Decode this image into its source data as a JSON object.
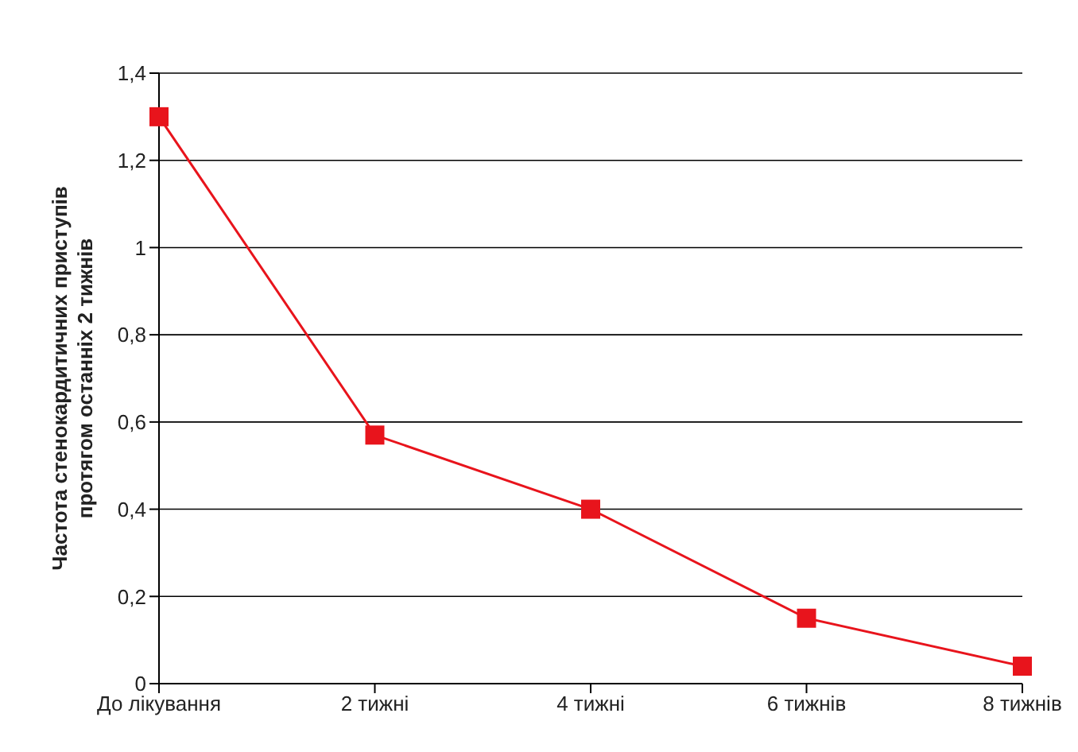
{
  "chart_data": {
    "type": "line",
    "ylabel": "Частота стенокардитичних приступів\nпротягом останніх 2 тижнів",
    "categories": [
      "До лікування",
      "2 тижні",
      "4 тижні",
      "6 тижнів",
      "8 тижнів"
    ],
    "series": [
      {
        "color": "#e8141c",
        "values": [
          1.3,
          0.57,
          0.4,
          0.15,
          0.04
        ]
      }
    ],
    "ylim": [
      0,
      1.4
    ],
    "yticks": [
      0,
      {
        "value": 0.2,
        "label": "0,2"
      },
      {
        "value": 0.4,
        "label": "0,4"
      },
      {
        "value": 0.6,
        "label": "0,6"
      },
      {
        "value": 0.8,
        "label": "0,8"
      },
      1,
      {
        "value": 1.2,
        "label": "1,2"
      },
      {
        "value": 1.4,
        "label": "1,4"
      }
    ],
    "grid": "y",
    "marker": "square",
    "line_style": "solid",
    "legend": false
  }
}
